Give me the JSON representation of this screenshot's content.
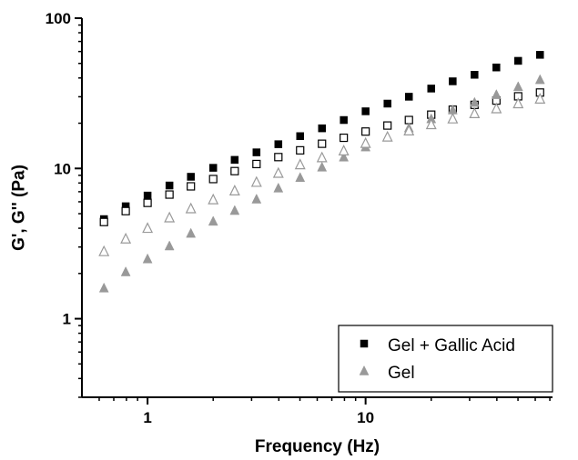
{
  "chart_data": {
    "type": "scatter",
    "title": "",
    "xlabel": "Frequency (Hz)",
    "ylabel": "G', G'' (Pa)",
    "xscale": "log",
    "yscale": "log",
    "xlim": [
      0.5,
      72
    ],
    "ylim": [
      0.3,
      100
    ],
    "x_ticks": [
      {
        "value": 1,
        "label": "1"
      },
      {
        "value": 10,
        "label": "10"
      }
    ],
    "y_ticks": [
      {
        "value": 1,
        "label": "1"
      },
      {
        "value": 10,
        "label": "10"
      },
      {
        "value": 100,
        "label": "100"
      }
    ],
    "grid": false,
    "legend_position": "bottom-right",
    "x": [
      0.631,
      0.794,
      1.0,
      1.26,
      1.58,
      2.0,
      2.51,
      3.16,
      3.98,
      5.01,
      6.31,
      7.94,
      10.0,
      12.6,
      15.8,
      20.0,
      25.1,
      31.6,
      39.8,
      50.1,
      63.1
    ],
    "series": [
      {
        "name": "Gel + Gallic Acid",
        "modulus": "G'",
        "marker": "square-filled",
        "color": "#000000",
        "values": [
          4.6,
          5.6,
          6.6,
          7.7,
          8.8,
          10.1,
          11.4,
          12.8,
          14.5,
          16.4,
          18.5,
          21.0,
          24.0,
          27.0,
          30.0,
          34.0,
          38.0,
          42.0,
          47.0,
          52.0,
          57.0
        ]
      },
      {
        "legend": false,
        "modulus": "G''",
        "marker": "square-open",
        "color": "#000000",
        "values": [
          4.4,
          5.2,
          5.9,
          6.7,
          7.6,
          8.5,
          9.6,
          10.7,
          11.9,
          13.2,
          14.6,
          16.0,
          17.6,
          19.3,
          21.0,
          22.8,
          24.6,
          26.5,
          28.3,
          30.2,
          32.0
        ]
      },
      {
        "name": "Gel",
        "modulus": "G'",
        "marker": "triangle-filled",
        "color": "#999999",
        "values": [
          1.6,
          2.05,
          2.5,
          3.05,
          3.7,
          4.45,
          5.25,
          6.25,
          7.4,
          8.7,
          10.2,
          11.9,
          13.9,
          16.2,
          18.6,
          21.4,
          24.5,
          27.5,
          31.0,
          35.0,
          39.0
        ]
      },
      {
        "legend": false,
        "modulus": "G''",
        "marker": "triangle-open",
        "color": "#999999",
        "values": [
          2.8,
          3.4,
          4.0,
          4.7,
          5.4,
          6.2,
          7.1,
          8.1,
          9.3,
          10.6,
          11.8,
          13.1,
          14.7,
          16.2,
          17.8,
          19.6,
          21.4,
          23.2,
          25.0,
          27.0,
          29.0
        ]
      }
    ]
  }
}
